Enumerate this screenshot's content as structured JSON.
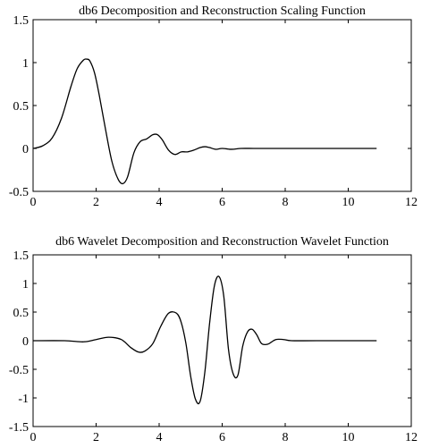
{
  "chart_data": [
    {
      "type": "line",
      "title": "db6  Decomposition and Reconstruction Scaling Function",
      "xlabel": "",
      "ylabel": "",
      "xlim": [
        0,
        12
      ],
      "ylim": [
        -0.5,
        1.5
      ],
      "xticks": [
        0,
        2,
        4,
        6,
        8,
        10,
        12
      ],
      "yticks": [
        -0.5,
        0,
        0.5,
        1,
        1.5
      ],
      "xtick_labels": [
        "0",
        "2",
        "4",
        "6",
        "8",
        "10",
        "12"
      ],
      "ytick_labels": [
        "-0.5",
        "0",
        "0.5",
        "1",
        "1.5"
      ],
      "grid": false,
      "line_color": "#000000",
      "series": [
        {
          "x": [
            0,
            0.3,
            0.6,
            0.9,
            1.2,
            1.4,
            1.6,
            1.7,
            1.8,
            1.95,
            2.1,
            2.3,
            2.5,
            2.7,
            2.85,
            3.0,
            3.2,
            3.4,
            3.6,
            3.8,
            3.95,
            4.1,
            4.3,
            4.5,
            4.7,
            4.9,
            5.1,
            5.3,
            5.45,
            5.6,
            5.8,
            6.0,
            6.3,
            6.6,
            7.0,
            7.5,
            8.5,
            10.0,
            10.9
          ],
          "y": [
            0,
            0.03,
            0.12,
            0.35,
            0.72,
            0.93,
            1.03,
            1.04,
            1.02,
            0.88,
            0.62,
            0.22,
            -0.15,
            -0.36,
            -0.41,
            -0.33,
            -0.05,
            0.08,
            0.11,
            0.16,
            0.16,
            0.1,
            -0.02,
            -0.07,
            -0.04,
            -0.04,
            -0.02,
            0.01,
            0.02,
            0.01,
            -0.01,
            0,
            -0.01,
            0,
            0,
            0,
            0,
            0,
            0
          ]
        }
      ]
    },
    {
      "type": "line",
      "title": "db6 Wavelet Decomposition and Reconstruction Wavelet Function",
      "xlabel": "",
      "ylabel": "",
      "xlim": [
        0,
        12
      ],
      "ylim": [
        -1.5,
        1.5
      ],
      "xticks": [
        0,
        2,
        4,
        6,
        8,
        10,
        12
      ],
      "yticks": [
        -1.5,
        -1,
        -0.5,
        0,
        0.5,
        1,
        1.5
      ],
      "xtick_labels": [
        "0",
        "2",
        "4",
        "6",
        "8",
        "10",
        "12"
      ],
      "ytick_labels": [
        "-1.5",
        "-1",
        "-0.5",
        "0",
        "0.5",
        "1",
        "1.5"
      ],
      "grid": false,
      "line_color": "#000000",
      "series": [
        {
          "x": [
            0,
            1.0,
            1.6,
            2.0,
            2.4,
            2.8,
            3.1,
            3.35,
            3.55,
            3.8,
            4.05,
            4.3,
            4.55,
            4.7,
            4.85,
            5.0,
            5.15,
            5.3,
            5.45,
            5.6,
            5.75,
            5.9,
            6.05,
            6.2,
            6.35,
            6.5,
            6.65,
            6.8,
            6.95,
            7.1,
            7.25,
            7.45,
            7.7,
            7.95,
            8.2,
            9.0,
            10.9
          ],
          "y": [
            0,
            0,
            -0.02,
            0.02,
            0.06,
            0.02,
            -0.12,
            -0.2,
            -0.18,
            -0.05,
            0.25,
            0.48,
            0.48,
            0.32,
            -0.05,
            -0.62,
            -1.02,
            -1.06,
            -0.55,
            0.3,
            0.95,
            1.12,
            0.78,
            -0.15,
            -0.58,
            -0.6,
            -0.1,
            0.15,
            0.2,
            0.1,
            -0.05,
            -0.06,
            0.02,
            0.02,
            0,
            0,
            0
          ]
        }
      ]
    }
  ]
}
